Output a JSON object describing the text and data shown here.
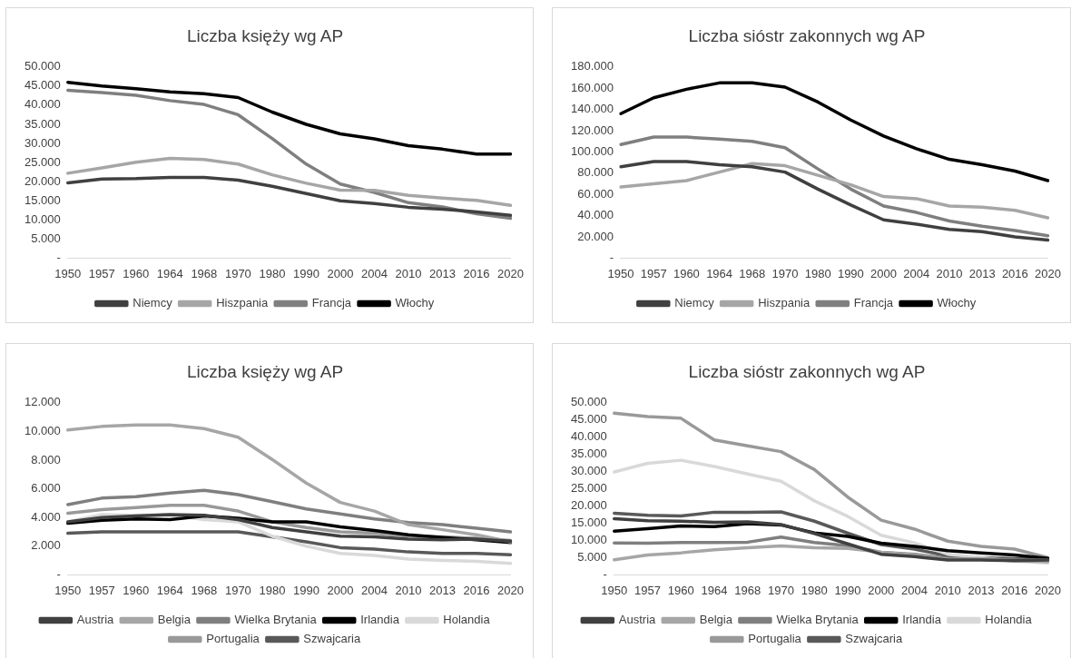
{
  "chart_data": [
    {
      "type": "line",
      "title": "Liczba księży wg AP",
      "categories": [
        "1950",
        "1957",
        "1960",
        "1964",
        "1968",
        "1970",
        "1980",
        "1990",
        "2000",
        "2004",
        "2010",
        "2013",
        "2016",
        "2020"
      ],
      "ylim": [
        0,
        50000
      ],
      "yticks": [
        {
          "value": 0,
          "label": "-"
        },
        {
          "value": 5000,
          "label": "5.000"
        },
        {
          "value": 10000,
          "label": "10.000"
        },
        {
          "value": 15000,
          "label": "15.000"
        },
        {
          "value": 20000,
          "label": "20.000"
        },
        {
          "value": 25000,
          "label": "25.000"
        },
        {
          "value": 30000,
          "label": "30.000"
        },
        {
          "value": 35000,
          "label": "35.000"
        },
        {
          "value": 40000,
          "label": "40.000"
        },
        {
          "value": 45000,
          "label": "45.000"
        },
        {
          "value": 50000,
          "label": "50.000"
        }
      ],
      "grid": false,
      "legend": "bottom",
      "series": [
        {
          "name": "Niemcy",
          "color": "#404040",
          "values": [
            19700,
            20700,
            20800,
            21100,
            21100,
            20400,
            18800,
            16900,
            15000,
            14300,
            13300,
            12800,
            12100,
            11200
          ]
        },
        {
          "name": "Hiszpania",
          "color": "#a6a6a6",
          "values": [
            22200,
            23600,
            25100,
            26100,
            25800,
            24600,
            21800,
            19600,
            17800,
            17700,
            16400,
            15700,
            15100,
            13800
          ]
        },
        {
          "name": "Francja",
          "color": "#7f7f7f",
          "values": [
            43900,
            43300,
            42600,
            41200,
            40200,
            37500,
            31300,
            24600,
            19400,
            17200,
            14500,
            13400,
            11600,
            10400
          ]
        },
        {
          "name": "Włochy",
          "color": "#000000",
          "values": [
            46000,
            45000,
            44300,
            43500,
            43000,
            42000,
            38200,
            35000,
            32500,
            31200,
            29400,
            28500,
            27200,
            27200
          ]
        }
      ]
    },
    {
      "type": "line",
      "title": "Liczba sióstr zakonnych wg AP",
      "categories": [
        "1950",
        "1957",
        "1960",
        "1964",
        "1968",
        "1970",
        "1980",
        "1990",
        "2000",
        "2004",
        "2010",
        "2013",
        "2016",
        "2020"
      ],
      "ylim": [
        0,
        180000
      ],
      "yticks": [
        {
          "value": 0,
          "label": "-"
        },
        {
          "value": 20000,
          "label": "20.000"
        },
        {
          "value": 40000,
          "label": "40.000"
        },
        {
          "value": 60000,
          "label": "60.000"
        },
        {
          "value": 80000,
          "label": "80.000"
        },
        {
          "value": 100000,
          "label": "100.000"
        },
        {
          "value": 120000,
          "label": "120.000"
        },
        {
          "value": 140000,
          "label": "140.000"
        },
        {
          "value": 160000,
          "label": "160.000"
        },
        {
          "value": 180000,
          "label": "180.000"
        }
      ],
      "grid": false,
      "legend": "bottom",
      "series": [
        {
          "name": "Niemcy",
          "color": "#404040",
          "values": [
            86000,
            91000,
            91000,
            88000,
            86000,
            81000,
            65000,
            50000,
            36000,
            32000,
            27000,
            25000,
            20000,
            17000
          ]
        },
        {
          "name": "Hiszpania",
          "color": "#a6a6a6",
          "values": [
            67000,
            70000,
            73000,
            81000,
            89000,
            87000,
            78000,
            69000,
            58000,
            56000,
            49000,
            48000,
            45000,
            38000
          ]
        },
        {
          "name": "Francja",
          "color": "#7f7f7f",
          "values": [
            107000,
            114000,
            114000,
            112000,
            110000,
            104000,
            84000,
            65000,
            49000,
            43000,
            35000,
            30000,
            26000,
            21000
          ]
        },
        {
          "name": "Włochy",
          "color": "#000000",
          "values": [
            136000,
            151000,
            159000,
            165000,
            165000,
            161000,
            147000,
            130000,
            115000,
            103000,
            93000,
            88000,
            82000,
            73000
          ]
        }
      ]
    },
    {
      "type": "line",
      "title": "Liczba księży wg AP",
      "categories": [
        "1950",
        "1957",
        "1960",
        "1964",
        "1968",
        "1970",
        "1980",
        "1990",
        "2000",
        "2004",
        "2010",
        "2013",
        "2016",
        "2020"
      ],
      "ylim": [
        0,
        12000
      ],
      "yticks": [
        {
          "value": 0,
          "label": "-"
        },
        {
          "value": 2000,
          "label": "2.000"
        },
        {
          "value": 4000,
          "label": "4.000"
        },
        {
          "value": 6000,
          "label": "6.000"
        },
        {
          "value": 8000,
          "label": "8.000"
        },
        {
          "value": 10000,
          "label": "10.000"
        },
        {
          "value": 12000,
          "label": "12.000"
        }
      ],
      "grid": false,
      "legend": "bottom",
      "series": [
        {
          "name": "Austria",
          "color": "#404040",
          "values": [
            3700,
            4000,
            4100,
            4200,
            4150,
            3850,
            3300,
            3000,
            2700,
            2650,
            2500,
            2450,
            2500,
            2350
          ]
        },
        {
          "name": "Belgia",
          "color": "#a6a6a6",
          "values": [
            10100,
            10350,
            10450,
            10450,
            10200,
            9600,
            8050,
            6400,
            5050,
            4450,
            3500,
            3150,
            2800,
            2300
          ]
        },
        {
          "name": "Wielka Brytania",
          "color": "#7f7f7f",
          "values": [
            4900,
            5350,
            5450,
            5700,
            5900,
            5600,
            5100,
            4600,
            4250,
            3900,
            3650,
            3500,
            3250,
            3000
          ]
        },
        {
          "name": "Irlandia",
          "color": "#000000",
          "values": [
            3600,
            3800,
            3900,
            3850,
            4100,
            3950,
            3700,
            3700,
            3350,
            3100,
            2800,
            2600,
            2450,
            2250
          ]
        },
        {
          "name": "Holandia",
          "color": "#d9d9d9",
          "values": [
            3700,
            4200,
            4150,
            4200,
            3850,
            3700,
            2700,
            2000,
            1500,
            1350,
            1100,
            1000,
            950,
            800
          ]
        },
        {
          "name": "Portugalia",
          "color": "#999999",
          "values": [
            4300,
            4550,
            4700,
            4850,
            4850,
            4450,
            3700,
            3300,
            3000,
            2900,
            2700,
            2650,
            2550,
            2400
          ]
        },
        {
          "name": "Szwajcaria",
          "color": "#595959",
          "values": [
            2900,
            3000,
            3000,
            3000,
            3000,
            3000,
            2650,
            2300,
            1900,
            1800,
            1600,
            1500,
            1500,
            1400
          ]
        }
      ]
    },
    {
      "type": "line",
      "title": "Liczba sióstr zakonnych wg AP",
      "categories": [
        "1950",
        "1957",
        "1960",
        "1964",
        "1968",
        "1970",
        "1980",
        "1990",
        "2000",
        "2004",
        "2010",
        "2013",
        "2016",
        "2020"
      ],
      "ylim": [
        0,
        50000
      ],
      "yticks": [
        {
          "value": 0,
          "label": "-"
        },
        {
          "value": 5000,
          "label": "5.000"
        },
        {
          "value": 10000,
          "label": "10.000"
        },
        {
          "value": 15000,
          "label": "15.000"
        },
        {
          "value": 20000,
          "label": "20.000"
        },
        {
          "value": 25000,
          "label": "25.000"
        },
        {
          "value": 30000,
          "label": "30.000"
        },
        {
          "value": 35000,
          "label": "35.000"
        },
        {
          "value": 40000,
          "label": "40.000"
        },
        {
          "value": 45000,
          "label": "45.000"
        },
        {
          "value": 50000,
          "label": "50.000"
        }
      ],
      "grid": false,
      "legend": "bottom",
      "series": [
        {
          "name": "Austria",
          "color": "#404040",
          "values": [
            16300,
            15700,
            15600,
            15300,
            15400,
            14600,
            12000,
            9000,
            6000,
            5300,
            4300,
            4300,
            4100,
            4300
          ]
        },
        {
          "name": "Belgia",
          "color": "#a6a6a6",
          "values": [
            4400,
            5800,
            6400,
            7300,
            7900,
            8400,
            7900,
            7700,
            6600,
            5800,
            4500,
            4500,
            4100,
            3800
          ]
        },
        {
          "name": "Wielka Brytania",
          "color": "#7f7f7f",
          "values": [
            9300,
            9200,
            9400,
            9400,
            9500,
            11000,
            9400,
            8500,
            6600,
            6000,
            4800,
            4600,
            4300,
            4300
          ]
        },
        {
          "name": "Irlandia",
          "color": "#000000",
          "values": [
            12700,
            13400,
            14200,
            14000,
            14900,
            14500,
            12200,
            11200,
            9200,
            8300,
            7000,
            6400,
            5800,
            4800
          ]
        },
        {
          "name": "Holandia",
          "color": "#d9d9d9",
          "values": [
            29900,
            32400,
            33300,
            31500,
            29300,
            27200,
            21500,
            17000,
            11500,
            9300,
            6000,
            5000,
            4000,
            3500
          ]
        },
        {
          "name": "Portugalia",
          "color": "#999999",
          "values": [
            47000,
            46000,
            45500,
            39200,
            37500,
            35800,
            30600,
            22600,
            15900,
            13300,
            9800,
            8300,
            7500,
            5000
          ]
        },
        {
          "name": "Szwajcaria",
          "color": "#595959",
          "values": [
            17900,
            17300,
            17100,
            18200,
            18200,
            18300,
            15600,
            12100,
            8800,
            7500,
            5500,
            5000,
            4700,
            4500
          ]
        }
      ]
    }
  ]
}
